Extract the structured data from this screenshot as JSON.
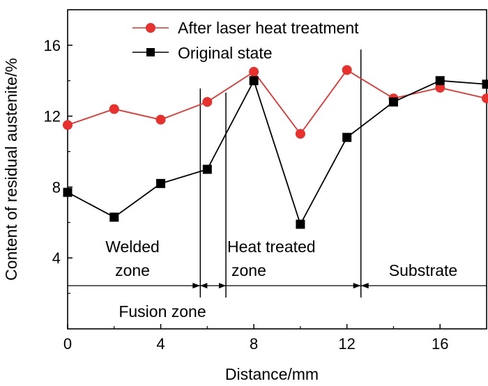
{
  "chart_data": {
    "type": "line",
    "title": "",
    "xlabel": "Distance/mm",
    "ylabel": "Content of residual austenite/%",
    "xlim": [
      0,
      18
    ],
    "ylim": [
      0,
      18
    ],
    "xticks": [
      0,
      4,
      8,
      12,
      16
    ],
    "yticks": [
      4,
      8,
      12,
      16
    ],
    "grid": false,
    "legend_position": "top-right",
    "series": [
      {
        "name": "After laser heat treatment",
        "color": "#e8312d",
        "marker": "circle",
        "x": [
          0,
          2,
          4,
          6,
          8,
          10,
          12,
          14,
          16,
          18
        ],
        "y": [
          11.5,
          12.4,
          11.8,
          12.8,
          14.5,
          11.0,
          14.6,
          13.0,
          13.6,
          13.0
        ]
      },
      {
        "name": "Original state",
        "color": "#000000",
        "marker": "square",
        "x": [
          0,
          2,
          4,
          6,
          8,
          10,
          12,
          14,
          16,
          18
        ],
        "y": [
          7.7,
          6.3,
          8.2,
          9.0,
          14.0,
          5.9,
          10.8,
          12.8,
          14.0,
          13.8
        ]
      }
    ],
    "boundaries_x": [
      5.7,
      6.8,
      12.6
    ],
    "regions": [
      {
        "name": "Welded zone",
        "lines": [
          "Welded",
          "zone"
        ]
      },
      {
        "name": "Heat treated zone",
        "lines": [
          "Heat treated",
          "zone"
        ]
      },
      {
        "name": "Substrate",
        "lines": [
          "Substrate"
        ]
      }
    ],
    "fusion_label": "Fusion zone"
  }
}
